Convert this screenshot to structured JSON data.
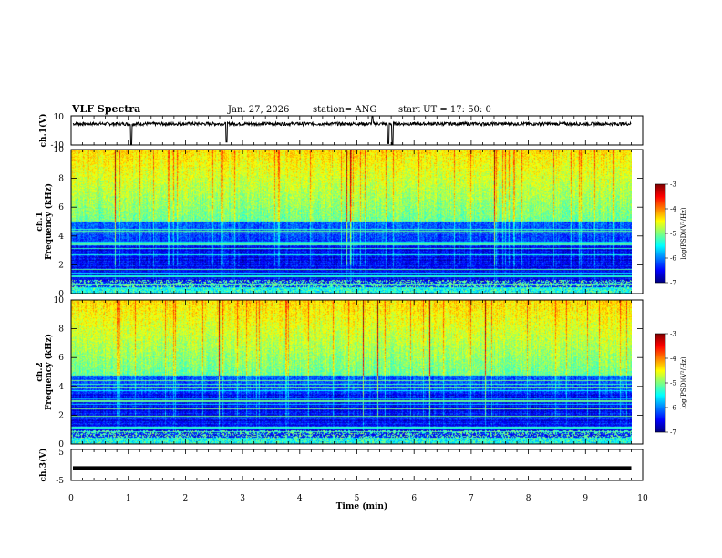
{
  "chart_data": {
    "type": "heatmap",
    "title": "VLF Spectra",
    "date": "Jan. 27, 2026",
    "station": "station= ANG",
    "start": "start  UT  =   17: 50: 0",
    "xlabel": "Time  (min)",
    "xlim": [
      0,
      10
    ],
    "xticks": [
      "0",
      "1",
      "2",
      "3",
      "4",
      "5",
      "6",
      "7",
      "8",
      "9",
      "10"
    ],
    "data_end_min": 9.8,
    "panels": [
      {
        "id": "ch1v",
        "kind": "waveform",
        "ylabel": "ch.1(V)",
        "ylim": [
          -10,
          10
        ],
        "yticks": [
          "10",
          "-10"
        ],
        "baseline": 4.5,
        "spikes": [
          {
            "t": 1.05,
            "v": -10
          },
          {
            "t": 2.72,
            "v": -8
          },
          {
            "t": 5.27,
            "v": 10
          },
          {
            "t": 5.55,
            "v": -9
          },
          {
            "t": 5.62,
            "v": -12
          }
        ]
      },
      {
        "id": "ch1spec",
        "kind": "spectrogram",
        "ylabel1": "ch.1",
        "ylabel2": "Frequency  (kHz)",
        "ylim": [
          0,
          10
        ],
        "yticks": [
          "0",
          "2",
          "4",
          "6",
          "8",
          "10"
        ],
        "colorbar": {
          "min": -7,
          "max": -3,
          "ticks": [
            "-3",
            "-4",
            "-5",
            "-6",
            "-7"
          ],
          "label": "log(PSD)(V²/Hz)"
        }
      },
      {
        "id": "ch2spec",
        "kind": "spectrogram",
        "ylabel1": "ch.2",
        "ylabel2": "Frequency  (kHz)",
        "ylim": [
          0,
          10
        ],
        "yticks": [
          "0",
          "2",
          "4",
          "6",
          "8",
          "10"
        ],
        "colorbar": {
          "min": -7,
          "max": -3,
          "ticks": [
            "-3",
            "-4",
            "-5",
            "-6",
            "-7"
          ],
          "label": "log(PSD)(V²/Hz)"
        }
      },
      {
        "id": "ch3v",
        "kind": "waveform",
        "ylabel": "ch.3(V)",
        "ylim": [
          -5,
          5
        ],
        "yticks": [
          "5",
          "-5"
        ],
        "baseline": -1
      }
    ]
  }
}
